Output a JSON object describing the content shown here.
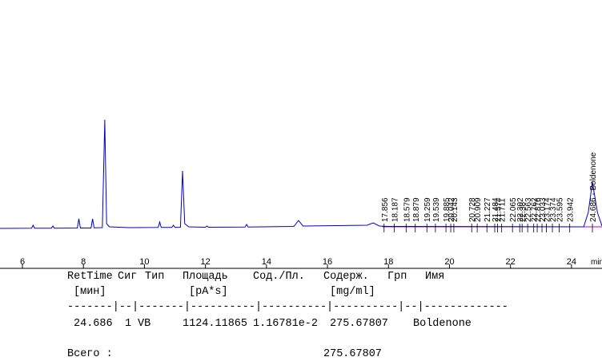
{
  "chart_data": {
    "type": "line",
    "color": "#0000cc",
    "x_label": "min",
    "x": [
      5.265,
      6.3,
      6.35,
      6.4,
      6.95,
      7.0,
      7.05,
      7.8,
      7.85,
      7.9,
      8.25,
      8.3,
      8.35,
      8.62,
      8.7,
      8.76,
      8.85,
      9.5,
      10.45,
      10.5,
      10.55,
      10.9,
      10.95,
      11.0,
      11.18,
      11.25,
      11.32,
      11.45,
      12.0,
      12.05,
      12.1,
      13.3,
      13.35,
      13.4,
      14.9,
      15.05,
      15.2,
      17.3,
      17.5,
      17.7,
      18.0,
      24.4,
      24.55,
      24.686,
      24.85,
      25.0
    ],
    "values": [
      0,
      0.3,
      4,
      0.3,
      0.3,
      3,
      0.3,
      0.5,
      12,
      0.5,
      0.5,
      12,
      0.7,
      1,
      136,
      6,
      2,
      1,
      1.2,
      8,
      1.2,
      1.2,
      4,
      1.2,
      1.5,
      72,
      6,
      2,
      1.5,
      3,
      1.5,
      1.8,
      5,
      1.8,
      2.5,
      10,
      3,
      4,
      7,
      3,
      2.5,
      2,
      20,
      58,
      20,
      3
    ],
    "baseline": {
      "color": "#c000c0",
      "x": [
        17.8,
        25.0
      ],
      "values": [
        2,
        2
      ]
    },
    "peak_labels": [
      17.856,
      18.187,
      18.579,
      18.879,
      19.259,
      19.539,
      19.885,
      20.042,
      20.143,
      20.728,
      20.909,
      21.227,
      21.484,
      21.574,
      21.711,
      22.065,
      22.302,
      22.38,
      22.563,
      22.762,
      22.876,
      23.033,
      23.174,
      23.374,
      23.595,
      23.942,
      {
        "value": 24.686,
        "label": "24.686 - Boldenone"
      }
    ],
    "xlim": [
      5.265,
      25.0
    ],
    "ylim": [
      0,
      286
    ],
    "xticks": [
      6,
      8,
      10,
      12,
      14,
      16,
      18,
      20,
      22,
      24
    ]
  },
  "table": {
    "header": [
      "RetTime",
      "Сиг",
      "Тип",
      "Площадь",
      "Сод./Пл.",
      "Содерж.",
      "Грп",
      "Имя"
    ],
    "units": [
      "[мин]",
      "[pA*s]",
      "[mg/ml]"
    ],
    "separator": "-------|--|-------|----------|----------|----------|--|-------------",
    "row": [
      "24.686",
      "1",
      "VB",
      "1124.11865",
      "1.16781e-2",
      "275.67807",
      "Boldenone"
    ],
    "total": {
      "label": "Всего :",
      "value": "275.67807"
    }
  }
}
